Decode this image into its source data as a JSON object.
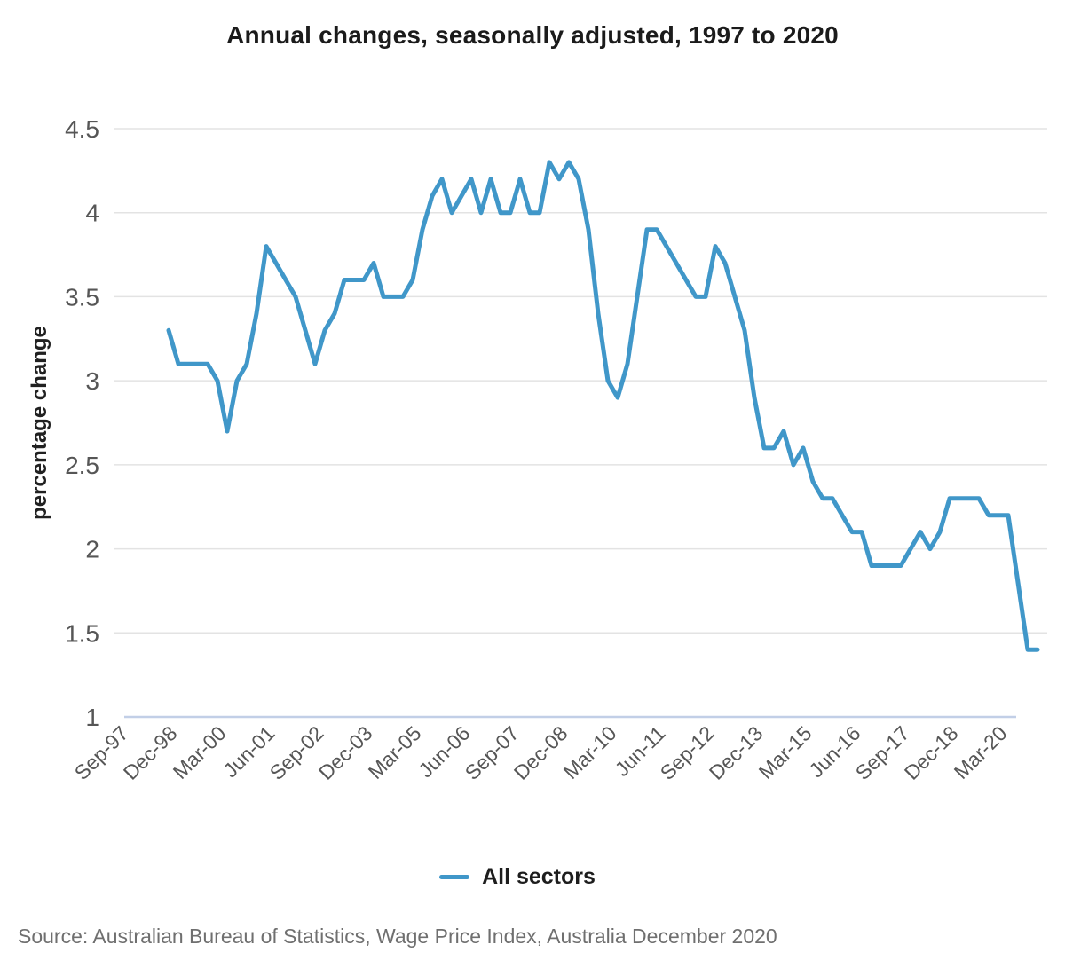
{
  "title": "Annual changes, seasonally adjusted, 1997 to 2020",
  "legend": {
    "label": "All sectors"
  },
  "source": "Source: Australian Bureau of Statistics, Wage Price Index, Australia December 2020",
  "colors": {
    "line": "#4097c9",
    "grid": "#e3e3e3",
    "baseline": "#c2cfe7",
    "tick_text": "#565656",
    "axis_title_text": "#212121",
    "title_text": "#1b1b1b",
    "legend_text": "#1d1d1d",
    "source_text": "#6f6f6f"
  },
  "chart_data": {
    "type": "line",
    "title": "Annual changes, seasonally adjusted, 1997 to 2020",
    "xlabel": "",
    "ylabel": "percentage change",
    "ylim": [
      1,
      4.5
    ],
    "y_ticks": [
      1,
      1.5,
      2,
      2.5,
      3,
      3.5,
      4,
      4.5
    ],
    "grid": "horizontal",
    "legend_position": "bottom",
    "x_axis_start": "Sep-97",
    "x_tick_labels": [
      "Sep-97",
      "Dec-98",
      "Mar-00",
      "Jun-01",
      "Sep-02",
      "Dec-03",
      "Mar-05",
      "Jun-06",
      "Sep-07",
      "Dec-08",
      "Mar-10",
      "Jun-11",
      "Sep-12",
      "Dec-13",
      "Mar-15",
      "Jun-16",
      "Sep-17",
      "Dec-18",
      "Mar-20"
    ],
    "x_tick_step_quarters": 5,
    "series": [
      {
        "name": "All sectors",
        "first_point_offset_quarters": 4,
        "x": [
          "Sep-98",
          "Dec-98",
          "Mar-99",
          "Jun-99",
          "Sep-99",
          "Dec-99",
          "Mar-00",
          "Jun-00",
          "Sep-00",
          "Dec-00",
          "Mar-01",
          "Jun-01",
          "Sep-01",
          "Dec-01",
          "Mar-02",
          "Jun-02",
          "Sep-02",
          "Dec-02",
          "Mar-03",
          "Jun-03",
          "Sep-03",
          "Dec-03",
          "Mar-04",
          "Jun-04",
          "Sep-04",
          "Dec-04",
          "Mar-05",
          "Jun-05",
          "Sep-05",
          "Dec-05",
          "Mar-06",
          "Jun-06",
          "Sep-06",
          "Dec-06",
          "Mar-07",
          "Jun-07",
          "Sep-07",
          "Dec-07",
          "Mar-08",
          "Jun-08",
          "Sep-08",
          "Dec-08",
          "Mar-09",
          "Jun-09",
          "Sep-09",
          "Dec-09",
          "Mar-10",
          "Jun-10",
          "Sep-10",
          "Dec-10",
          "Mar-11",
          "Jun-11",
          "Sep-11",
          "Dec-11",
          "Mar-12",
          "Jun-12",
          "Sep-12",
          "Dec-12",
          "Mar-13",
          "Jun-13",
          "Sep-13",
          "Dec-13",
          "Mar-14",
          "Jun-14",
          "Sep-14",
          "Dec-14",
          "Mar-15",
          "Jun-15",
          "Sep-15",
          "Dec-15",
          "Mar-16",
          "Jun-16",
          "Sep-16",
          "Dec-16",
          "Mar-17",
          "Jun-17",
          "Sep-17",
          "Dec-17",
          "Mar-18",
          "Jun-18",
          "Sep-18",
          "Dec-18",
          "Mar-19",
          "Jun-19",
          "Sep-19",
          "Dec-19",
          "Mar-20",
          "Jun-20",
          "Sep-20",
          "Dec-20"
        ],
        "values": [
          3.3,
          3.1,
          3.1,
          3.1,
          3.1,
          3.0,
          2.7,
          3.0,
          3.1,
          3.4,
          3.8,
          3.7,
          3.6,
          3.5,
          3.3,
          3.1,
          3.3,
          3.4,
          3.6,
          3.6,
          3.6,
          3.7,
          3.5,
          3.5,
          3.5,
          3.6,
          3.9,
          4.1,
          4.2,
          4.0,
          4.1,
          4.2,
          4.0,
          4.2,
          4.0,
          4.0,
          4.2,
          4.0,
          4.0,
          4.3,
          4.2,
          4.3,
          4.2,
          3.9,
          3.4,
          3.0,
          2.9,
          3.1,
          3.5,
          3.9,
          3.9,
          3.8,
          3.7,
          3.6,
          3.5,
          3.5,
          3.8,
          3.7,
          3.5,
          3.3,
          2.9,
          2.6,
          2.6,
          2.7,
          2.5,
          2.6,
          2.4,
          2.3,
          2.3,
          2.2,
          2.1,
          2.1,
          1.9,
          1.9,
          1.9,
          1.9,
          2.0,
          2.1,
          2.0,
          2.1,
          2.3,
          2.3,
          2.3,
          2.3,
          2.2,
          2.2,
          2.2,
          1.8,
          1.4,
          1.4
        ]
      }
    ]
  }
}
